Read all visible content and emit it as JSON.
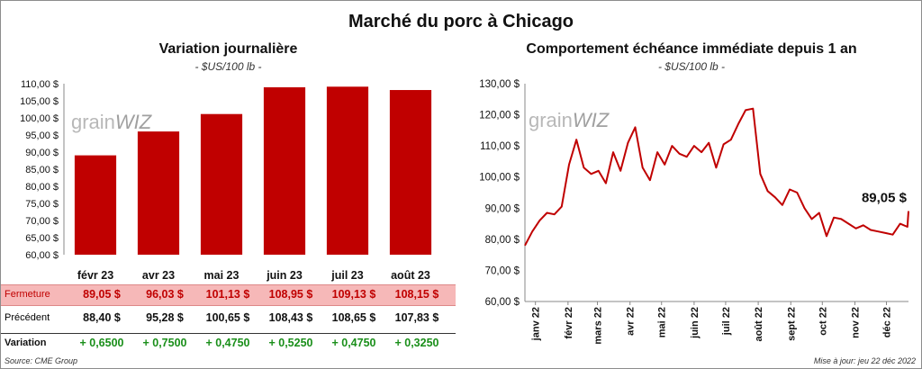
{
  "title": "Marché du porc à Chicago",
  "left": {
    "title": "Variation journalière",
    "subtitle": "- $US/100 lb -",
    "watermark": {
      "left": "grain",
      "right": "WIZ"
    }
  },
  "right": {
    "title": "Comportement échéance immédiate depuis 1 an",
    "subtitle": "- $US/100 lb -",
    "last_label": "89,05 $",
    "watermark": {
      "left": "grain",
      "right": "WIZ"
    }
  },
  "table": {
    "rows": [
      {
        "label": "Fermeture",
        "values": [
          "89,05 $",
          "96,03 $",
          "101,13 $",
          "108,95 $",
          "109,13 $",
          "108,15 $"
        ]
      },
      {
        "label": "Précédent",
        "values": [
          "88,40 $",
          "95,28 $",
          "100,65 $",
          "108,43 $",
          "108,65 $",
          "107,83 $"
        ]
      },
      {
        "label": "Variation",
        "values": [
          "+ 0,6500",
          "+ 0,7500",
          "+ 0,4750",
          "+ 0,5250",
          "+ 0,4750",
          "+ 0,3250"
        ]
      }
    ]
  },
  "footer": {
    "source": "Source: CME Group",
    "updated": "Mise à jour: jeu 22 déc 2022"
  },
  "colors": {
    "bar": "#c00000",
    "line": "#c00000",
    "fermeture_bg": "#f6b8b8",
    "variation_text": "#1a8f1a"
  },
  "chart_data": [
    {
      "type": "bar",
      "categories": [
        "févr 23",
        "avr 23",
        "mai 23",
        "juin 23",
        "juil 23",
        "août 23"
      ],
      "values": [
        89.05,
        96.03,
        101.13,
        108.95,
        109.13,
        108.15
      ],
      "ylim": [
        60,
        110
      ],
      "yticks": [
        "60,00 $",
        "65,00 $",
        "70,00 $",
        "75,00 $",
        "80,00 $",
        "85,00 $",
        "90,00 $",
        "95,00 $",
        "100,00 $",
        "105,00 $",
        "110,00 $"
      ],
      "grid": false
    },
    {
      "type": "line",
      "ylim": [
        60,
        130
      ],
      "yticks": [
        "60,00 $",
        "70,00 $",
        "80,00 $",
        "90,00 $",
        "100,00 $",
        "110,00 $",
        "120,00 $",
        "130,00 $"
      ],
      "xticks": [
        "janv 22",
        "févr 22",
        "mars 22",
        "avr 22",
        "mai 22",
        "juin 22",
        "juil 22",
        "août 22",
        "sept 22",
        "oct 22",
        "nov 22",
        "déc 22"
      ],
      "x": [
        "2021-12-22",
        "2021-12-29",
        "2022-01-05",
        "2022-01-12",
        "2022-01-19",
        "2022-01-26",
        "2022-02-02",
        "2022-02-09",
        "2022-02-16",
        "2022-02-23",
        "2022-03-02",
        "2022-03-09",
        "2022-03-16",
        "2022-03-23",
        "2022-03-30",
        "2022-04-06",
        "2022-04-13",
        "2022-04-20",
        "2022-04-27",
        "2022-05-04",
        "2022-05-11",
        "2022-05-18",
        "2022-05-25",
        "2022-06-01",
        "2022-06-08",
        "2022-06-15",
        "2022-06-22",
        "2022-06-29",
        "2022-07-06",
        "2022-07-13",
        "2022-07-20",
        "2022-07-27",
        "2022-08-03",
        "2022-08-10",
        "2022-08-17",
        "2022-08-24",
        "2022-08-31",
        "2022-09-07",
        "2022-09-14",
        "2022-09-21",
        "2022-09-28",
        "2022-10-05",
        "2022-10-12",
        "2022-10-19",
        "2022-10-26",
        "2022-11-02",
        "2022-11-09",
        "2022-11-16",
        "2022-11-23",
        "2022-11-30",
        "2022-12-07",
        "2022-12-14",
        "2022-12-21",
        "2022-12-22"
      ],
      "series": [
        {
          "values": [
            78.0,
            82.5,
            86.0,
            88.5,
            88.0,
            90.5,
            104.0,
            112.0,
            103.0,
            101.0,
            102.0,
            98.0,
            108.0,
            102.0,
            111.0,
            116.0,
            103.0,
            99.0,
            108.0,
            104.0,
            110.0,
            107.5,
            106.5,
            110.0,
            108.0,
            111.0,
            103.0,
            110.5,
            112.0,
            117.0,
            121.5,
            122.0,
            101.0,
            95.5,
            93.5,
            91.0,
            96.0,
            95.0,
            90.0,
            86.5,
            88.5,
            81.0,
            87.0,
            86.5,
            85.0,
            83.5,
            84.5,
            83.0,
            82.5,
            82.0,
            81.5,
            85.0,
            84.0,
            89.05
          ]
        }
      ]
    }
  ]
}
